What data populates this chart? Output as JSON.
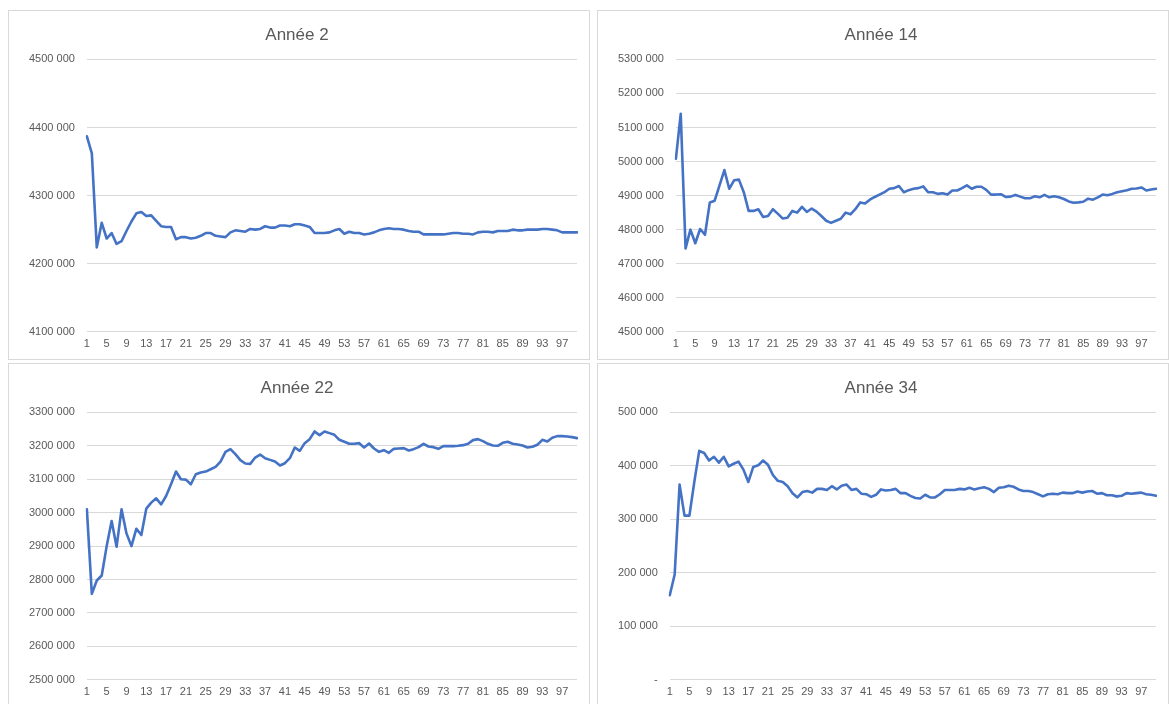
{
  "chart_data": [
    {
      "type": "line",
      "title": "Année 2",
      "categories": [
        "1",
        null,
        null,
        null,
        "5",
        null,
        null,
        null,
        "9",
        null,
        null,
        null,
        "13",
        null,
        null,
        null,
        "17",
        null,
        null,
        null,
        "21",
        null,
        null,
        null,
        "25",
        null,
        null,
        null,
        "29",
        null,
        null,
        null,
        "33",
        null,
        null,
        null,
        "37",
        null,
        null,
        null,
        "41",
        null,
        null,
        null,
        "45",
        null,
        null,
        null,
        "49",
        null,
        null,
        null,
        "53",
        null,
        null,
        null,
        "57",
        null,
        null,
        null,
        "61",
        null,
        null,
        null,
        "65",
        null,
        null,
        null,
        "69",
        null,
        null,
        null,
        "73",
        null,
        null,
        null,
        "77",
        null,
        null,
        null,
        "81",
        null,
        null,
        null,
        "85",
        null,
        null,
        null,
        "89",
        null,
        null,
        null,
        "93",
        null,
        null,
        null,
        "97",
        null,
        null,
        null
      ],
      "series": [
        {
          "color": "#4472c4",
          "values": [
            4387000,
            4362000,
            4224000,
            4260000,
            4237000,
            4245000,
            4229000,
            4233000,
            4248000,
            4262000,
            4274000,
            4276000,
            4270000,
            4271000,
            4263000,
            4255000,
            4254000,
            4254000,
            4236000,
            4239000,
            4239000,
            4237000,
            4238000,
            4241000,
            4245000,
            4245000,
            4241000,
            4240000,
            4239000,
            4246000,
            4249000,
            4248000,
            4247000,
            4251000,
            4250000,
            4251000,
            4255000,
            4253000,
            4253000,
            4256000,
            4256000,
            4255000,
            4258000,
            4258000,
            4256000,
            4254000,
            4245000,
            4245000,
            4245000,
            4246000,
            4249000,
            4251000,
            4244000,
            4247000,
            4245000,
            4245000,
            4243000,
            4244000,
            4246000,
            4249000,
            4251000,
            4252000,
            4251000,
            4251000,
            4250000,
            4248000,
            4247000,
            4247000,
            4243000,
            4243000,
            4243000,
            4243000,
            4243000,
            4244000,
            4245000,
            4245000,
            4244000,
            4244000,
            4243000,
            4246000,
            4247000,
            4247000,
            4246000,
            4248000,
            4248000,
            4248000,
            4250000,
            4249000,
            4249000,
            4250000,
            4250000,
            4250000,
            4251000,
            4251000,
            4250000,
            4249000,
            4246000,
            4246000,
            4246000,
            4246000
          ]
        }
      ],
      "ylim": [
        4100000,
        4500000
      ],
      "yticks": [
        {
          "value": 4100000,
          "label": "4100 000"
        },
        {
          "value": 4200000,
          "label": "4200 000"
        },
        {
          "value": 4300000,
          "label": "4300 000"
        },
        {
          "value": 4400000,
          "label": "4400 000"
        },
        {
          "value": 4500000,
          "label": "4500 000"
        }
      ],
      "grid": "y",
      "marker": "none",
      "line_style": "solid"
    },
    {
      "type": "line",
      "title": "Année 14",
      "categories": [
        "1",
        null,
        null,
        null,
        "5",
        null,
        null,
        null,
        "9",
        null,
        null,
        null,
        "13",
        null,
        null,
        null,
        "17",
        null,
        null,
        null,
        "21",
        null,
        null,
        null,
        "25",
        null,
        null,
        null,
        "29",
        null,
        null,
        null,
        "33",
        null,
        null,
        null,
        "37",
        null,
        null,
        null,
        "41",
        null,
        null,
        null,
        "45",
        null,
        null,
        null,
        "49",
        null,
        null,
        null,
        "53",
        null,
        null,
        null,
        "57",
        null,
        null,
        null,
        "61",
        null,
        null,
        null,
        "65",
        null,
        null,
        null,
        "69",
        null,
        null,
        null,
        "73",
        null,
        null,
        null,
        "77",
        null,
        null,
        null,
        "81",
        null,
        null,
        null,
        "85",
        null,
        null,
        null,
        "89",
        null,
        null,
        null,
        "93",
        null,
        null,
        null,
        "97",
        null,
        null,
        null
      ],
      "series": [
        {
          "color": "#4472c4",
          "values": [
            5008000,
            5140000,
            4745000,
            4800000,
            4760000,
            4802000,
            4785000,
            4880000,
            4885000,
            4930000,
            4975000,
            4920000,
            4945000,
            4947000,
            4910000,
            4855000,
            4855000,
            4860000,
            4837000,
            4840000,
            4860000,
            4847000,
            4833000,
            4835000,
            4855000,
            4850000,
            4867000,
            4852000,
            4862000,
            4853000,
            4840000,
            4826000,
            4820000,
            4826000,
            4832000,
            4850000,
            4845000,
            4860000,
            4880000,
            4877000,
            4888000,
            4896000,
            4903000,
            4910000,
            4920000,
            4922000,
            4928000,
            4910000,
            4916000,
            4920000,
            4922000,
            4927000,
            4910000,
            4910000,
            4905000,
            4907000,
            4903000,
            4915000,
            4915000,
            4922000,
            4930000,
            4920000,
            4926000,
            4926000,
            4917000,
            4903000,
            4903000,
            4904000,
            4896000,
            4897000,
            4902000,
            4897000,
            4892000,
            4892000,
            4898000,
            4895000,
            4902000,
            4895000,
            4898000,
            4895000,
            4890000,
            4883000,
            4879000,
            4880000,
            4882000,
            4891000,
            4888000,
            4895000,
            4903000,
            4901000,
            4905000,
            4910000,
            4913000,
            4916000,
            4920000,
            4921000,
            4924000,
            4915000,
            4918000,
            4920000
          ]
        }
      ],
      "ylim": [
        4500000,
        5300000
      ],
      "yticks": [
        {
          "value": 4500000,
          "label": "4500 000"
        },
        {
          "value": 4600000,
          "label": "4600 000"
        },
        {
          "value": 4700000,
          "label": "4700 000"
        },
        {
          "value": 4800000,
          "label": "4800 000"
        },
        {
          "value": 4900000,
          "label": "4900 000"
        },
        {
          "value": 5000000,
          "label": "5000 000"
        },
        {
          "value": 5100000,
          "label": "5100 000"
        },
        {
          "value": 5200000,
          "label": "5200 000"
        },
        {
          "value": 5300000,
          "label": "5300 000"
        }
      ],
      "grid": "y",
      "marker": "none",
      "line_style": "solid"
    },
    {
      "type": "line",
      "title": "Année 22",
      "categories": [
        "1",
        null,
        null,
        null,
        "5",
        null,
        null,
        null,
        "9",
        null,
        null,
        null,
        "13",
        null,
        null,
        null,
        "17",
        null,
        null,
        null,
        "21",
        null,
        null,
        null,
        "25",
        null,
        null,
        null,
        "29",
        null,
        null,
        null,
        "33",
        null,
        null,
        null,
        "37",
        null,
        null,
        null,
        "41",
        null,
        null,
        null,
        "45",
        null,
        null,
        null,
        "49",
        null,
        null,
        null,
        "53",
        null,
        null,
        null,
        "57",
        null,
        null,
        null,
        "61",
        null,
        null,
        null,
        "65",
        null,
        null,
        null,
        "69",
        null,
        null,
        null,
        "73",
        null,
        null,
        null,
        "77",
        null,
        null,
        null,
        "81",
        null,
        null,
        null,
        "85",
        null,
        null,
        null,
        "89",
        null,
        null,
        null,
        "93",
        null,
        null,
        null,
        "97",
        null,
        null,
        null
      ],
      "series": [
        {
          "color": "#4472c4",
          "values": [
            3010000,
            2757000,
            2797000,
            2812000,
            2900000,
            2975000,
            2898000,
            3010000,
            2938000,
            2900000,
            2952000,
            2933000,
            3012000,
            3030000,
            3043000,
            3025000,
            3050000,
            3085000,
            3123000,
            3100000,
            3099000,
            3085000,
            3115000,
            3120000,
            3123000,
            3130000,
            3137000,
            3153000,
            3182000,
            3190000,
            3175000,
            3157000,
            3147000,
            3146000,
            3165000,
            3174000,
            3163000,
            3158000,
            3153000,
            3141000,
            3148000,
            3163000,
            3195000,
            3185000,
            3208000,
            3220000,
            3243000,
            3232000,
            3243000,
            3238000,
            3233000,
            3218000,
            3212000,
            3206000,
            3206000,
            3208000,
            3195000,
            3207000,
            3192000,
            3182000,
            3187000,
            3179000,
            3191000,
            3192000,
            3193000,
            3186000,
            3190000,
            3196000,
            3206000,
            3198000,
            3196000,
            3191000,
            3199000,
            3199000,
            3199000,
            3200000,
            3202000,
            3206000,
            3217000,
            3220000,
            3214000,
            3206000,
            3201000,
            3200000,
            3209000,
            3212000,
            3206000,
            3204000,
            3201000,
            3195000,
            3197000,
            3203000,
            3218000,
            3213000,
            3224000,
            3229000,
            3229000,
            3228000,
            3226000,
            3223000
          ]
        }
      ],
      "ylim": [
        2500000,
        3300000
      ],
      "yticks": [
        {
          "value": 2500000,
          "label": "2500 000"
        },
        {
          "value": 2600000,
          "label": "2600 000"
        },
        {
          "value": 2700000,
          "label": "2700 000"
        },
        {
          "value": 2800000,
          "label": "2800 000"
        },
        {
          "value": 2900000,
          "label": "2900 000"
        },
        {
          "value": 3000000,
          "label": "3000 000"
        },
        {
          "value": 3100000,
          "label": "3100 000"
        },
        {
          "value": 3200000,
          "label": "3200 000"
        },
        {
          "value": 3300000,
          "label": "3300 000"
        }
      ],
      "grid": "y",
      "marker": "none",
      "line_style": "solid"
    },
    {
      "type": "line",
      "title": "Année 34",
      "categories": [
        "1",
        null,
        null,
        null,
        "5",
        null,
        null,
        null,
        "9",
        null,
        null,
        null,
        "13",
        null,
        null,
        null,
        "17",
        null,
        null,
        null,
        "21",
        null,
        null,
        null,
        "25",
        null,
        null,
        null,
        "29",
        null,
        null,
        null,
        "33",
        null,
        null,
        null,
        "37",
        null,
        null,
        null,
        "41",
        null,
        null,
        null,
        "45",
        null,
        null,
        null,
        "49",
        null,
        null,
        null,
        "53",
        null,
        null,
        null,
        "57",
        null,
        null,
        null,
        "61",
        null,
        null,
        null,
        "65",
        null,
        null,
        null,
        "69",
        null,
        null,
        null,
        "73",
        null,
        null,
        null,
        "77",
        null,
        null,
        null,
        "81",
        null,
        null,
        null,
        "85",
        null,
        null,
        null,
        "89",
        null,
        null,
        null,
        "93",
        null,
        null,
        null,
        "97",
        null,
        null,
        null
      ],
      "series": [
        {
          "color": "#4472c4",
          "values": [
            158000,
            197000,
            365000,
            307000,
            307000,
            370000,
            428000,
            424000,
            410000,
            417000,
            406000,
            417000,
            399000,
            404000,
            408000,
            393000,
            370000,
            398000,
            401000,
            410000,
            402000,
            383000,
            372000,
            370000,
            362000,
            349000,
            341000,
            351000,
            353000,
            350000,
            357000,
            357000,
            355000,
            362000,
            356000,
            363000,
            365000,
            355000,
            357000,
            348000,
            347000,
            342000,
            346000,
            356000,
            354000,
            355000,
            357000,
            349000,
            349000,
            344000,
            340000,
            339000,
            346000,
            341000,
            341000,
            347000,
            355000,
            355000,
            355000,
            357000,
            356000,
            359000,
            356000,
            358000,
            360000,
            357000,
            351000,
            359000,
            360000,
            363000,
            361000,
            356000,
            353000,
            353000,
            351000,
            347000,
            343000,
            347000,
            348000,
            347000,
            350000,
            349000,
            349000,
            352000,
            350000,
            352000,
            353000,
            348000,
            349000,
            345000,
            345000,
            343000,
            344000,
            349000,
            348000,
            349000,
            350000,
            347000,
            346000,
            344000
          ]
        }
      ],
      "ylim": [
        0,
        500000
      ],
      "yticks": [
        {
          "value": 0,
          "label": "-"
        },
        {
          "value": 100000,
          "label": "100 000"
        },
        {
          "value": 200000,
          "label": "200 000"
        },
        {
          "value": 300000,
          "label": "300 000"
        },
        {
          "value": 400000,
          "label": "400 000"
        },
        {
          "value": 500000,
          "label": "500 000"
        }
      ],
      "grid": "y",
      "marker": "none",
      "line_style": "solid"
    }
  ]
}
